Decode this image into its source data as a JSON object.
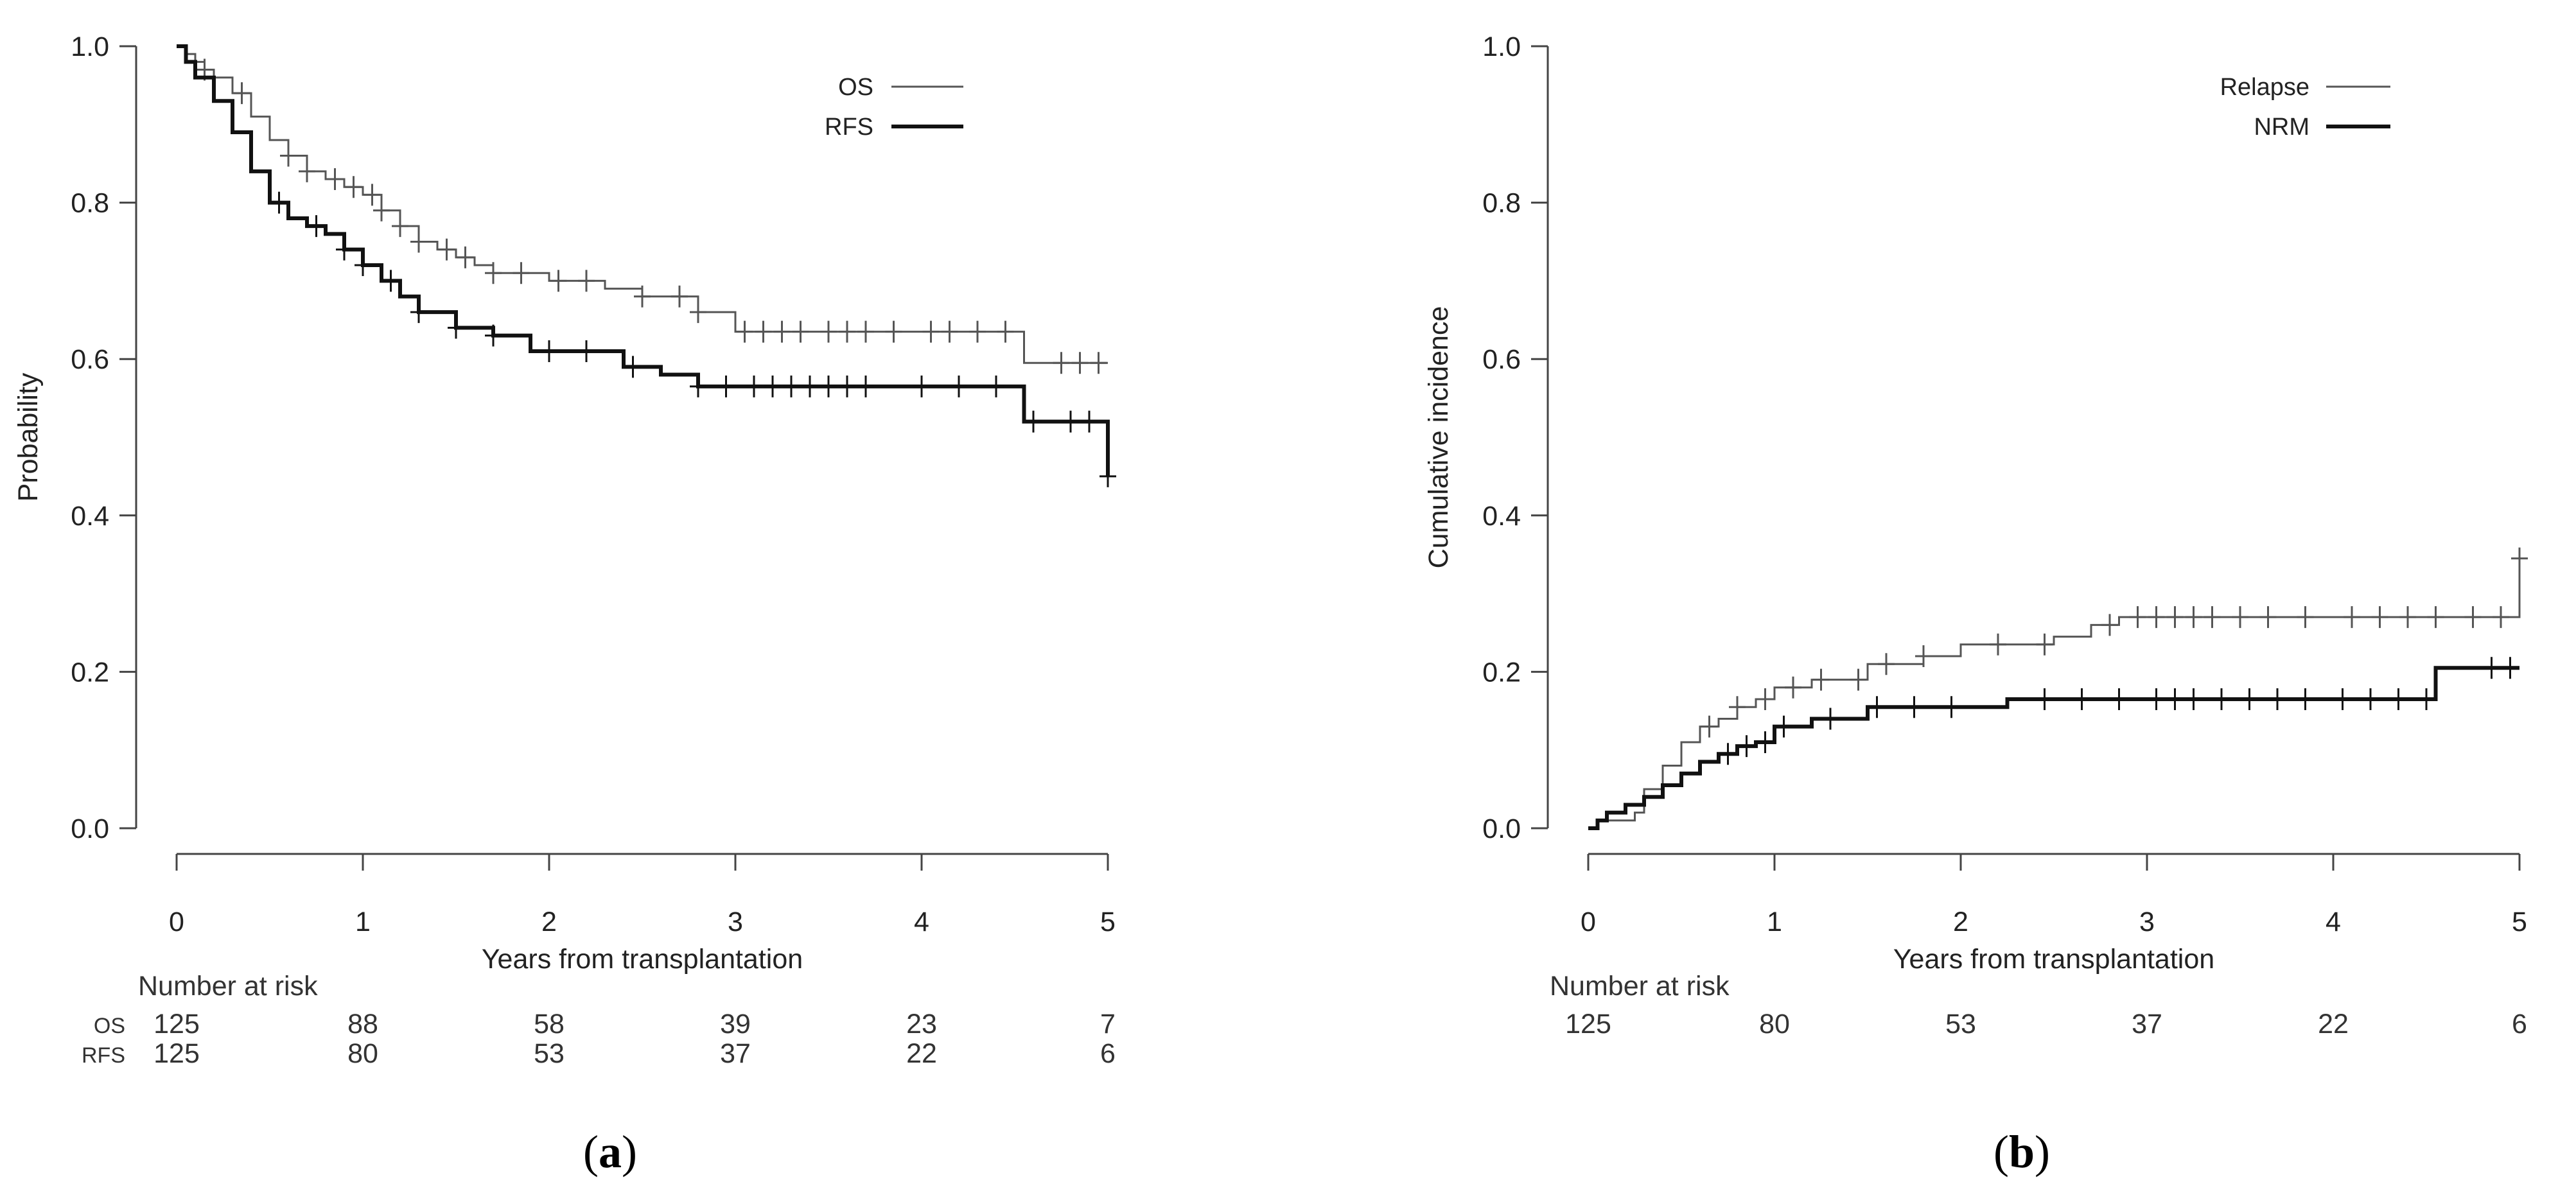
{
  "chart_data": [
    {
      "panel": "a",
      "type": "line",
      "step": true,
      "xlabel": "Years from transplantation",
      "ylabel": "Probability",
      "xlim": [
        0,
        5
      ],
      "ylim": [
        0,
        1
      ],
      "xticks": [
        "0",
        "1",
        "2",
        "3",
        "4",
        "5"
      ],
      "yticks": [
        "0.0",
        "0.2",
        "0.4",
        "0.6",
        "0.8",
        "1.0"
      ],
      "legend": "top-right",
      "series": [
        {
          "name": "OS",
          "color": "#555555",
          "weight": "thin",
          "x": [
            0,
            0.05,
            0.1,
            0.15,
            0.2,
            0.3,
            0.4,
            0.5,
            0.6,
            0.7,
            0.8,
            0.9,
            1.0,
            1.1,
            1.2,
            1.3,
            1.4,
            1.5,
            1.6,
            1.7,
            2.0,
            2.3,
            2.5,
            2.8,
            3.0,
            3.5,
            4.0,
            4.55,
            5.0
          ],
          "y": [
            1.0,
            0.99,
            0.98,
            0.97,
            0.96,
            0.94,
            0.91,
            0.88,
            0.86,
            0.84,
            0.83,
            0.82,
            0.81,
            0.79,
            0.77,
            0.75,
            0.74,
            0.73,
            0.72,
            0.71,
            0.7,
            0.69,
            0.68,
            0.66,
            0.635,
            0.635,
            0.635,
            0.595,
            0.595
          ],
          "censor_x": [
            0.15,
            0.35,
            0.6,
            0.7,
            0.85,
            0.95,
            1.05,
            1.1,
            1.2,
            1.3,
            1.45,
            1.55,
            1.7,
            1.85,
            2.05,
            2.2,
            2.5,
            2.7,
            2.8,
            3.05,
            3.15,
            3.25,
            3.35,
            3.5,
            3.6,
            3.7,
            3.85,
            4.05,
            4.15,
            4.3,
            4.45,
            4.75,
            4.85,
            4.95
          ]
        },
        {
          "name": "RFS",
          "color": "#111111",
          "weight": "thick",
          "x": [
            0,
            0.05,
            0.1,
            0.2,
            0.3,
            0.4,
            0.5,
            0.6,
            0.7,
            0.8,
            0.9,
            1.0,
            1.1,
            1.2,
            1.3,
            1.5,
            1.7,
            1.9,
            2.1,
            2.4,
            2.6,
            2.8,
            3.0,
            4.0,
            4.55,
            5.0
          ],
          "y": [
            1.0,
            0.98,
            0.96,
            0.93,
            0.89,
            0.84,
            0.8,
            0.78,
            0.77,
            0.76,
            0.74,
            0.72,
            0.7,
            0.68,
            0.66,
            0.64,
            0.63,
            0.61,
            0.61,
            0.59,
            0.58,
            0.565,
            0.565,
            0.565,
            0.52,
            0.45
          ],
          "censor_x": [
            0.55,
            0.75,
            0.9,
            1.0,
            1.15,
            1.3,
            1.5,
            1.7,
            2.0,
            2.2,
            2.45,
            2.8,
            2.95,
            3.1,
            3.2,
            3.3,
            3.4,
            3.5,
            3.6,
            3.7,
            4.0,
            4.2,
            4.4,
            4.6,
            4.8,
            4.9,
            5.0
          ]
        }
      ],
      "risk_table": {
        "title": "Number at risk",
        "rows": [
          {
            "label": "OS",
            "values": [
              "125",
              "88",
              "58",
              "39",
              "23",
              "7"
            ]
          },
          {
            "label": "RFS",
            "values": [
              "125",
              "80",
              "53",
              "37",
              "22",
              "6"
            ]
          }
        ]
      },
      "caption": {
        "open": "(",
        "letter": "a",
        "close": ")"
      }
    },
    {
      "panel": "b",
      "type": "line",
      "step": true,
      "xlabel": "Years from transplantation",
      "ylabel": "Cumulative incidence",
      "xlim": [
        0,
        5
      ],
      "ylim": [
        0,
        1
      ],
      "xticks": [
        "0",
        "1",
        "2",
        "3",
        "4",
        "5"
      ],
      "yticks": [
        "0.0",
        "0.2",
        "0.4",
        "0.6",
        "0.8",
        "1.0"
      ],
      "legend": "top-right",
      "series": [
        {
          "name": "Relapse",
          "color": "#555555",
          "weight": "thin",
          "x": [
            0,
            0.05,
            0.25,
            0.3,
            0.4,
            0.5,
            0.6,
            0.7,
            0.8,
            0.9,
            1.0,
            1.2,
            1.5,
            1.8,
            2.0,
            2.5,
            2.7,
            2.85,
            3.0,
            4.0,
            5.0
          ],
          "y": [
            0,
            0.01,
            0.02,
            0.05,
            0.08,
            0.11,
            0.13,
            0.14,
            0.155,
            0.165,
            0.18,
            0.19,
            0.21,
            0.22,
            0.235,
            0.245,
            0.26,
            0.27,
            0.27,
            0.27,
            0.345
          ],
          "censor_x": [
            0.65,
            0.8,
            0.95,
            1.1,
            1.25,
            1.45,
            1.6,
            1.8,
            2.2,
            2.45,
            2.8,
            2.95,
            3.05,
            3.15,
            3.25,
            3.35,
            3.5,
            3.65,
            3.85,
            4.1,
            4.25,
            4.4,
            4.55,
            4.75,
            4.9,
            5.0
          ]
        },
        {
          "name": "NRM",
          "color": "#111111",
          "weight": "thick",
          "x": [
            0,
            0.05,
            0.1,
            0.2,
            0.3,
            0.4,
            0.5,
            0.6,
            0.7,
            0.8,
            0.9,
            1.0,
            1.2,
            1.5,
            2.0,
            2.25,
            3.0,
            4.0,
            4.55,
            5.0
          ],
          "y": [
            0,
            0.01,
            0.02,
            0.03,
            0.04,
            0.055,
            0.07,
            0.085,
            0.095,
            0.105,
            0.11,
            0.13,
            0.14,
            0.155,
            0.155,
            0.165,
            0.165,
            0.165,
            0.205,
            0.205
          ],
          "censor_x": [
            0.75,
            0.85,
            0.95,
            1.05,
            1.3,
            1.55,
            1.75,
            1.95,
            2.45,
            2.65,
            2.85,
            3.05,
            3.15,
            3.25,
            3.4,
            3.55,
            3.7,
            3.85,
            4.05,
            4.2,
            4.35,
            4.5,
            4.85,
            4.95
          ]
        }
      ],
      "risk_table": {
        "title": "Number at risk",
        "rows": [
          {
            "label": "",
            "values": [
              "125",
              "80",
              "53",
              "37",
              "22",
              "6"
            ]
          }
        ]
      },
      "caption": {
        "open": "(",
        "letter": "b",
        "close": ")"
      }
    }
  ]
}
